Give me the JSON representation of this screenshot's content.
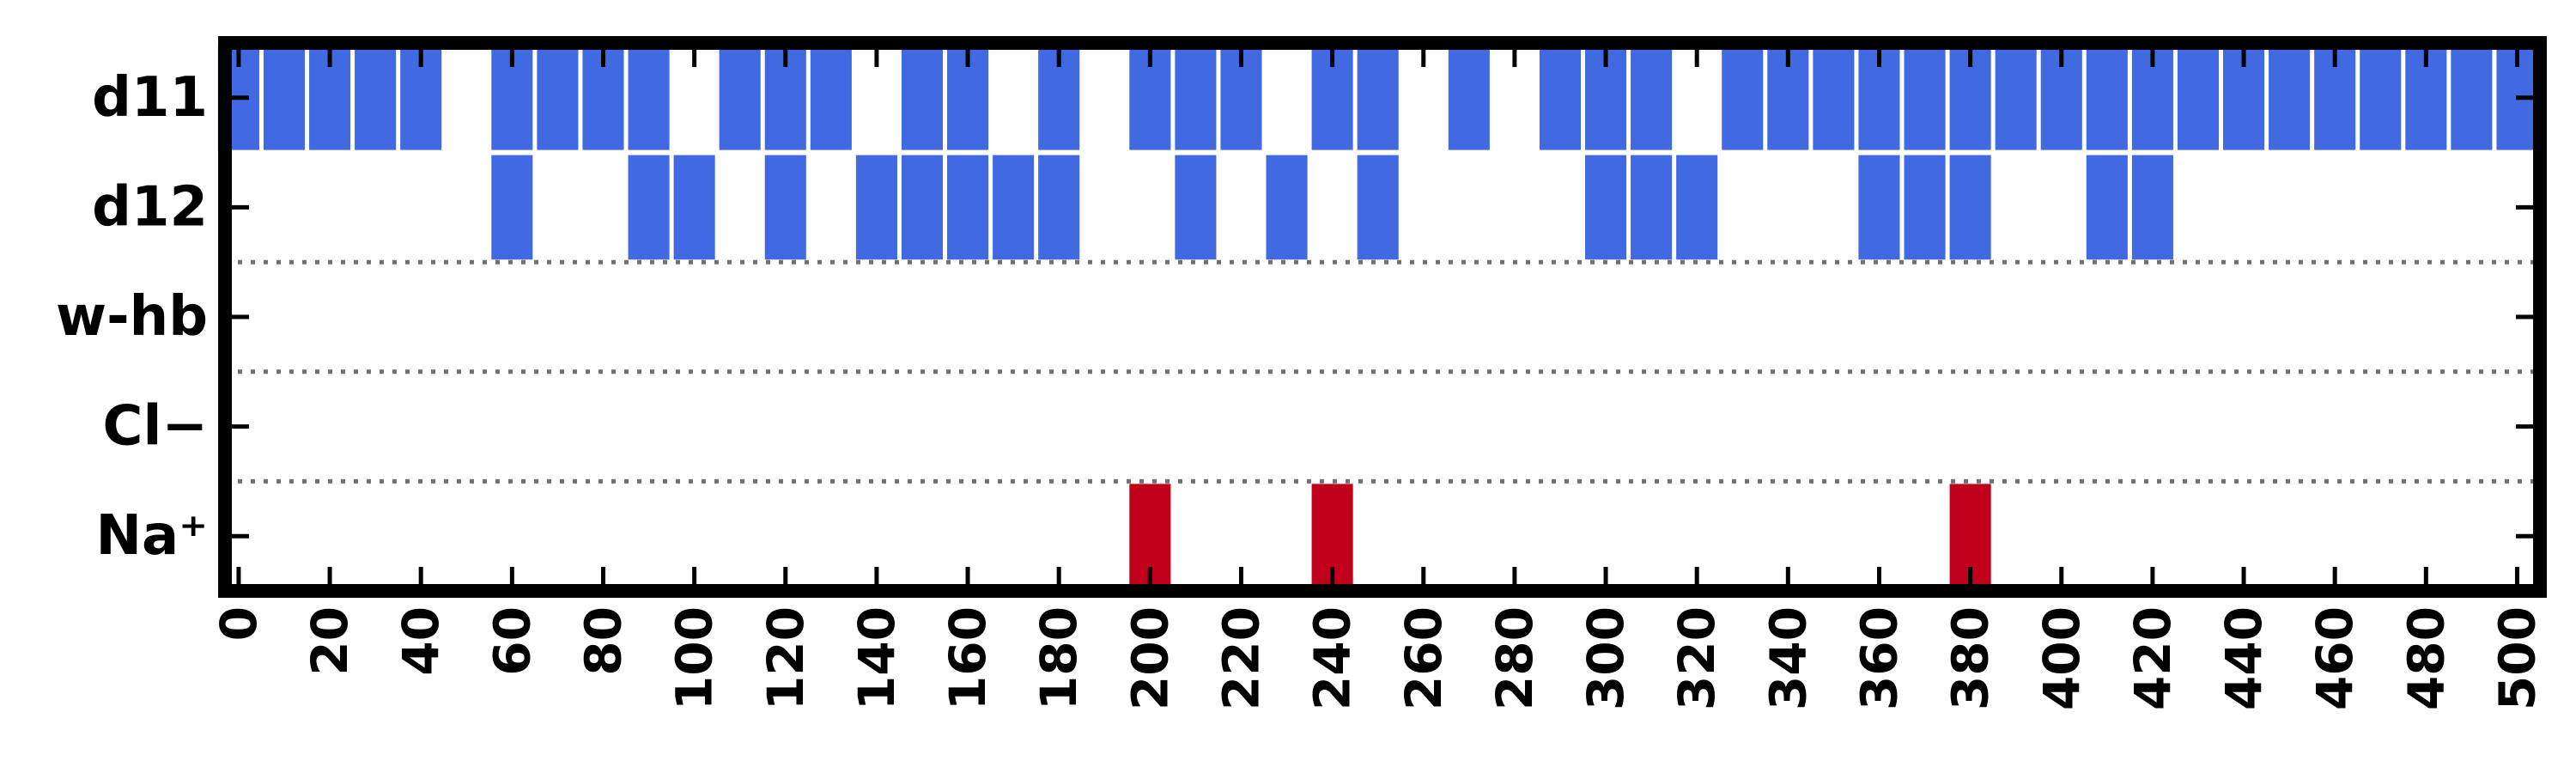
{
  "chart_data": {
    "type": "heatmap",
    "title": "",
    "xlabel": "",
    "ylabel": "",
    "xlim": [
      -3,
      505
    ],
    "xticks": [
      0,
      20,
      40,
      60,
      80,
      100,
      120,
      140,
      160,
      180,
      200,
      220,
      240,
      260,
      280,
      300,
      320,
      340,
      360,
      380,
      400,
      420,
      440,
      460,
      480,
      500
    ],
    "grid": false,
    "separators_after_rows": [
      "d12",
      "w-hb",
      "Cl−"
    ],
    "bin_width": 10,
    "rows": [
      {
        "label": "d11",
        "color": "#4169E1",
        "bins": [
          0,
          10,
          20,
          30,
          40,
          60,
          70,
          80,
          90,
          110,
          120,
          130,
          150,
          160,
          180,
          200,
          210,
          220,
          240,
          250,
          270,
          290,
          300,
          310,
          330,
          340,
          350,
          360,
          370,
          380,
          390,
          400,
          410,
          420,
          430,
          440,
          450,
          460,
          470,
          480,
          490,
          500
        ]
      },
      {
        "label": "d12",
        "color": "#4169E1",
        "bins": [
          60,
          90,
          100,
          120,
          140,
          150,
          160,
          170,
          180,
          210,
          230,
          250,
          300,
          310,
          320,
          360,
          370,
          380,
          410,
          420
        ]
      },
      {
        "label": "w-hb",
        "color": "#4169E1",
        "bins": []
      },
      {
        "label": "Cl−",
        "color": "#4169E1",
        "bins": []
      },
      {
        "label": "Na⁺",
        "color": "#C0001A",
        "bins": [
          200,
          240,
          380
        ]
      }
    ]
  }
}
